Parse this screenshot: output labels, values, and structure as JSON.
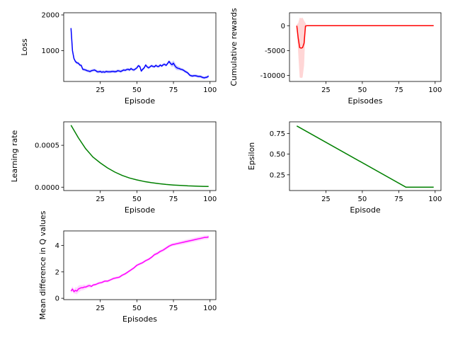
{
  "chart_data": [
    {
      "type": "line",
      "xlabel": "Episode",
      "ylabel": "Loss",
      "xlim": [
        0,
        104
      ],
      "ylim": [
        140,
        2060
      ],
      "xticks": [
        25,
        50,
        75,
        100
      ],
      "yticks": [
        1000,
        2000
      ],
      "series": [
        {
          "color": "#0000ff",
          "band_color": "#8080ff",
          "x": [
            5,
            6,
            7,
            8,
            9,
            10,
            11,
            12,
            13,
            14,
            15,
            16,
            17,
            18,
            19,
            20,
            21,
            22,
            23,
            24,
            25,
            26,
            27,
            28,
            29,
            30,
            31,
            32,
            33,
            34,
            35,
            36,
            37,
            38,
            39,
            40,
            41,
            42,
            43,
            44,
            45,
            46,
            47,
            48,
            49,
            50,
            51,
            52,
            53,
            54,
            55,
            56,
            57,
            58,
            59,
            60,
            61,
            62,
            63,
            64,
            65,
            66,
            67,
            68,
            69,
            70,
            71,
            72,
            73,
            74,
            75,
            76,
            77,
            78,
            79,
            80,
            81,
            82,
            83,
            84,
            85,
            86,
            87,
            88,
            89,
            90,
            91,
            92,
            93,
            94,
            95,
            96,
            97,
            98,
            99
          ],
          "y": [
            1630,
            1000,
            780,
            700,
            660,
            650,
            600,
            590,
            480,
            470,
            460,
            440,
            430,
            420,
            440,
            450,
            460,
            440,
            410,
            410,
            420,
            400,
            410,
            400,
            420,
            410,
            410,
            410,
            420,
            420,
            410,
            420,
            440,
            430,
            420,
            440,
            460,
            450,
            470,
            480,
            460,
            500,
            470,
            460,
            490,
            520,
            580,
            560,
            430,
            480,
            520,
            600,
            550,
            520,
            550,
            580,
            560,
            550,
            590,
            560,
            560,
            600,
            570,
            610,
            620,
            590,
            640,
            700,
            640,
            610,
            650,
            580,
            530,
            510,
            500,
            480,
            470,
            450,
            420,
            400,
            370,
            320,
            300,
            290,
            300,
            300,
            290,
            280,
            280,
            270,
            250,
            240,
            250,
            260,
            290
          ],
          "band": [
            40,
            40,
            40,
            40,
            40,
            40,
            40,
            40,
            40,
            40,
            40,
            40,
            40,
            40,
            40,
            40,
            40,
            40,
            40,
            40,
            40,
            40,
            40,
            40,
            40,
            40,
            40,
            40,
            40,
            40,
            40,
            40,
            40,
            40,
            40,
            40,
            40,
            40,
            40,
            40,
            40,
            40,
            40,
            40,
            40,
            40,
            40,
            40,
            40,
            40,
            40,
            40,
            40,
            40,
            40,
            40,
            40,
            40,
            40,
            40,
            40,
            40,
            40,
            40,
            40,
            40,
            40,
            40,
            60,
            70,
            80,
            80,
            70,
            60,
            50,
            40,
            40,
            40,
            40,
            40,
            40,
            40,
            40,
            40,
            40,
            40,
            40,
            40,
            40,
            40,
            40,
            40,
            40,
            40,
            40
          ]
        }
      ]
    },
    {
      "type": "line",
      "xlabel": "Episodes",
      "ylabel": "Cumulative rewards",
      "xlim": [
        0,
        104
      ],
      "ylim": [
        -11200,
        2600
      ],
      "xticks": [
        25,
        50,
        75,
        100
      ],
      "yticks": [
        -10000,
        -5000,
        0
      ],
      "series": [
        {
          "color": "#ff0000",
          "band_color": "#ff9999",
          "x": [
            5,
            6,
            7,
            8,
            9,
            10,
            11,
            12,
            13,
            14,
            15,
            20,
            30,
            40,
            50,
            60,
            70,
            80,
            90,
            95,
            99
          ],
          "y": [
            0,
            -2500,
            -4400,
            -4500,
            -4400,
            -3500,
            -60,
            0,
            0,
            0,
            0,
            0,
            0,
            0,
            0,
            0,
            0,
            0,
            0,
            0,
            0
          ],
          "band": [
            300,
            3000,
            6000,
            6000,
            6000,
            4500,
            600,
            0,
            0,
            0,
            0,
            0,
            0,
            0,
            0,
            0,
            0,
            0,
            0,
            0,
            0
          ]
        }
      ]
    },
    {
      "type": "line",
      "xlabel": "Episode",
      "ylabel": "Learning rate",
      "xlim": [
        0,
        104
      ],
      "ylim": [
        -4e-05,
        0.00078
      ],
      "xticks": [
        25,
        50,
        75,
        100
      ],
      "yticks": [
        0.0,
        0.0005
      ],
      "ytick_labels": [
        "0.0000",
        "0.0005"
      ],
      "series": [
        {
          "color": "#008000",
          "x": [
            5,
            10,
            15,
            20,
            25,
            30,
            35,
            40,
            45,
            50,
            55,
            60,
            65,
            70,
            75,
            80,
            85,
            90,
            95,
            99
          ],
          "y": [
            0.00074,
            0.00059,
            0.00046,
            0.00036,
            0.00029,
            0.00023,
            0.00018,
            0.00014,
            0.00011,
            8.7e-05,
            6.8e-05,
            5.4e-05,
            4.2e-05,
            3.3e-05,
            2.6e-05,
            2.1e-05,
            1.6e-05,
            1.3e-05,
            1e-05,
            8e-06
          ]
        }
      ]
    },
    {
      "type": "line",
      "xlabel": "Episode",
      "ylabel": "Epsilon",
      "xlim": [
        0,
        104
      ],
      "ylim": [
        0.06,
        0.89
      ],
      "xticks": [
        25,
        50,
        75,
        100
      ],
      "yticks": [
        0.25,
        0.5,
        0.75
      ],
      "ytick_labels": [
        "0.25",
        "0.50",
        "0.75"
      ],
      "series": [
        {
          "color": "#008000",
          "x": [
            5,
            80,
            99
          ],
          "y": [
            0.84,
            0.1,
            0.1
          ]
        }
      ]
    },
    {
      "type": "line",
      "xlabel": "Episodes",
      "ylabel": "Mean difference in Q values",
      "xlim": [
        0,
        104
      ],
      "ylim": [
        -0.1,
        5.1
      ],
      "xticks": [
        25,
        50,
        75,
        100
      ],
      "yticks": [
        0,
        2,
        4
      ],
      "series": [
        {
          "color": "#ff00ff",
          "band_color": "#ff99ff",
          "x": [
            5,
            6,
            7,
            8,
            9,
            10,
            11,
            12,
            13,
            14,
            15,
            16,
            17,
            18,
            19,
            20,
            22,
            24,
            26,
            28,
            30,
            32,
            34,
            36,
            38,
            40,
            42,
            44,
            46,
            48,
            50,
            52,
            54,
            56,
            58,
            60,
            62,
            64,
            66,
            68,
            70,
            72,
            74,
            76,
            78,
            80,
            82,
            84,
            86,
            88,
            90,
            92,
            94,
            96,
            98,
            99
          ],
          "y": [
            0.55,
            0.7,
            0.5,
            0.6,
            0.55,
            0.7,
            0.75,
            0.8,
            0.8,
            0.85,
            0.85,
            0.9,
            0.95,
            0.95,
            0.9,
            1.0,
            1.05,
            1.15,
            1.2,
            1.3,
            1.3,
            1.4,
            1.5,
            1.55,
            1.6,
            1.75,
            1.85,
            2.0,
            2.15,
            2.3,
            2.5,
            2.6,
            2.7,
            2.85,
            2.95,
            3.1,
            3.3,
            3.4,
            3.55,
            3.65,
            3.8,
            3.95,
            4.05,
            4.1,
            4.15,
            4.2,
            4.25,
            4.3,
            4.35,
            4.4,
            4.45,
            4.5,
            4.55,
            4.6,
            4.62,
            4.65
          ],
          "band": [
            0.15,
            0.2,
            0.15,
            0.25,
            0.25,
            0.25,
            0.25,
            0.2,
            0.2,
            0.2,
            0.15,
            0.15,
            0.15,
            0.15,
            0.1,
            0.1,
            0.1,
            0.1,
            0.1,
            0.1,
            0.1,
            0.1,
            0.1,
            0.1,
            0.1,
            0.1,
            0.1,
            0.1,
            0.1,
            0.1,
            0.1,
            0.1,
            0.1,
            0.1,
            0.1,
            0.1,
            0.12,
            0.12,
            0.12,
            0.12,
            0.12,
            0.12,
            0.12,
            0.12,
            0.12,
            0.15,
            0.15,
            0.15,
            0.15,
            0.15,
            0.15,
            0.15,
            0.15,
            0.15,
            0.15,
            0.15
          ]
        }
      ]
    }
  ]
}
